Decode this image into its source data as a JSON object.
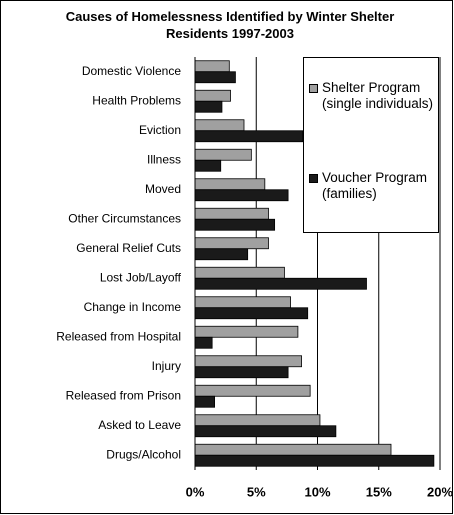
{
  "chart_data": {
    "type": "hbar",
    "title": "Causes of Homelessness Identified by Winter Shelter Residents 1997-2003",
    "categories": [
      "Domestic Violence",
      "Health Problems",
      "Eviction",
      "Illness",
      "Moved",
      "Other Circumstances",
      "General Relief Cuts",
      "Lost Job/Layoff",
      "Change in Income",
      "Released from Hospital",
      "Injury",
      "Released from Prison",
      "Asked to Leave",
      "Drugs/Alcohol"
    ],
    "series": [
      {
        "name": "Shelter Program (single individuals)",
        "color": "#a0a0a0",
        "values": [
          2.8,
          2.9,
          4.0,
          4.6,
          5.7,
          6.0,
          6.0,
          7.3,
          7.8,
          8.4,
          8.7,
          9.4,
          10.2,
          16.0
        ]
      },
      {
        "name": "Voucher Program (families)",
        "color": "#1a1a1a",
        "values": [
          3.3,
          2.2,
          8.8,
          2.1,
          7.6,
          6.5,
          4.3,
          14.0,
          9.2,
          1.4,
          7.6,
          1.6,
          11.5,
          19.5
        ]
      }
    ],
    "xlim": [
      0,
      20
    ],
    "xticks": [
      {
        "value": 0,
        "label": "0%"
      },
      {
        "value": 5,
        "label": "5%"
      },
      {
        "value": 10,
        "label": "10%"
      },
      {
        "value": 15,
        "label": "15%"
      },
      {
        "value": 20,
        "label": "20%"
      }
    ],
    "grid": true
  }
}
